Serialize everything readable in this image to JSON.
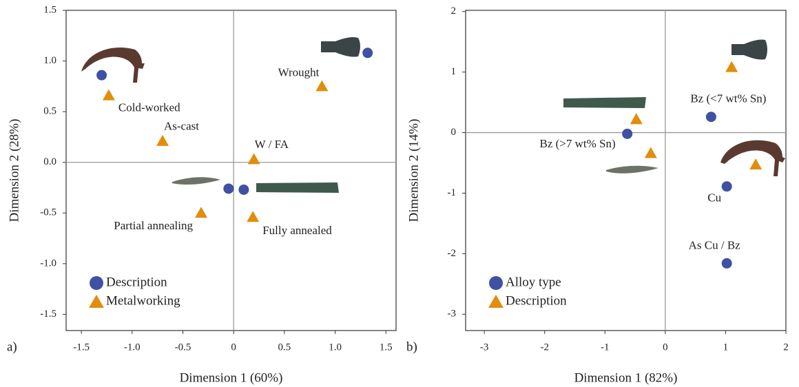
{
  "chart_data": [
    {
      "type": "scatter",
      "panel_label": "a)",
      "x_label": "Dimension 1 (60%)",
      "y_label": "Dimension 2 (28%)",
      "xlim": [
        -1.65,
        1.6
      ],
      "ylim": [
        -1.66,
        1.5
      ],
      "xticks": [
        -1.5,
        {
          "value": -1,
          "label": "-1.0"
        },
        -0.5,
        0,
        0.5,
        {
          "value": 1,
          "label": "1.0"
        },
        1.5
      ],
      "yticks": [
        -1.5,
        {
          "value": -1,
          "label": "-1.0"
        },
        -0.5,
        {
          "value": 0,
          "label": "0.0"
        },
        0.5,
        {
          "value": 1,
          "label": "1.0"
        },
        1.5
      ],
      "zero_lines": true,
      "legend": "lower left",
      "series": [
        {
          "name": "Description",
          "marker": "circle",
          "color": "#3f51a3",
          "x": [
            -1.3,
            1.32,
            -0.05,
            0.1
          ],
          "values": [
            0.86,
            1.08,
            -0.26,
            -0.27
          ]
        },
        {
          "name": "Metalworking",
          "marker": "triangle",
          "color": "#e08e0b",
          "x": [
            -1.23,
            0.87,
            -0.7,
            0.2,
            -0.32,
            0.19
          ],
          "values": [
            0.66,
            0.75,
            0.21,
            0.03,
            -0.5,
            -0.54
          ],
          "labels": [
            "Cold-worked",
            "Wrought",
            "As-cast",
            "W / FA",
            "Partial annealing",
            "Fully annealed"
          ]
        }
      ]
    },
    {
      "type": "scatter",
      "panel_label": "b)",
      "x_label": "Dimension 1 (82%)",
      "y_label": "Dimension 2 (14%)",
      "xlim": [
        -3.31,
        2
      ],
      "ylim": [
        -3.27,
        2.02
      ],
      "xticks": [
        -3,
        -2,
        -1,
        0,
        1,
        2
      ],
      "yticks": [
        -3,
        -2,
        -1,
        0,
        1,
        2
      ],
      "zero_lines": true,
      "legend": "lower left",
      "series": [
        {
          "name": "Alloy type",
          "marker": "circle",
          "color": "#3f51a3",
          "x": [
            0.76,
            -0.63,
            1.02,
            1.02
          ],
          "values": [
            0.26,
            -0.02,
            -0.89,
            -2.16
          ],
          "labels": [
            "Bz (<7 wt% Sn)",
            "Bz (>7 wt% Sn)",
            "Cu",
            "As Cu / Bz"
          ]
        },
        {
          "name": "Description",
          "marker": "triangle",
          "color": "#e08e0b",
          "x": [
            1.1,
            -0.48,
            -0.24,
            1.5
          ],
          "values": [
            1.08,
            0.22,
            -0.34,
            -0.53
          ]
        }
      ]
    }
  ]
}
